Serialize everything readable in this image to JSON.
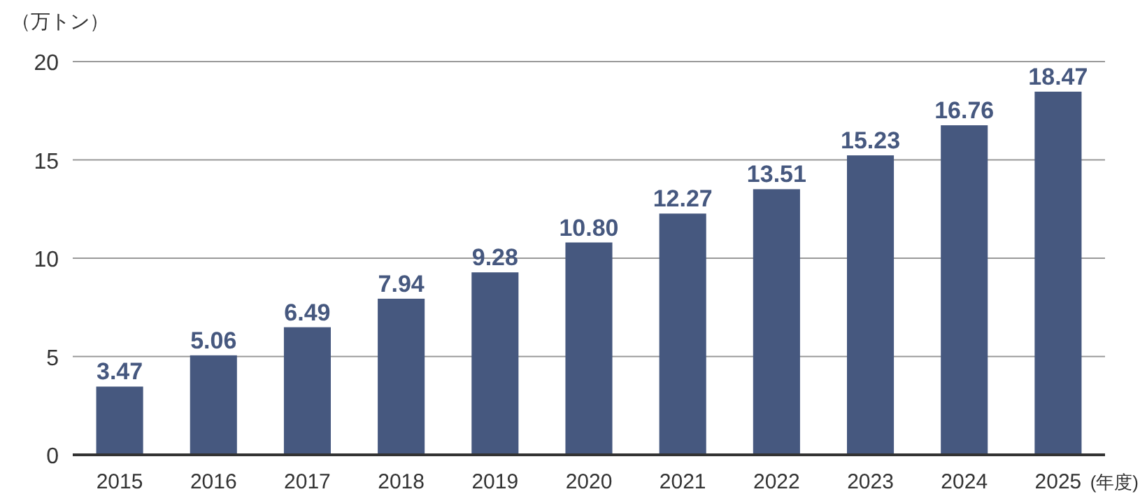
{
  "chart_data": {
    "type": "bar",
    "ylabel": "（万トン）",
    "xlabel": "(年度)",
    "categories": [
      "2015",
      "2016",
      "2017",
      "2018",
      "2019",
      "2020",
      "2021",
      "2022",
      "2023",
      "2024",
      "2025"
    ],
    "series": [
      {
        "color": "#46587f",
        "values": [
          3.47,
          5.06,
          6.49,
          7.94,
          9.28,
          10.8,
          12.27,
          13.51,
          15.23,
          16.76,
          18.47
        ]
      }
    ],
    "value_labels": [
      "3.47",
      "5.06",
      "6.49",
      "7.94",
      "9.28",
      "10.80",
      "12.27",
      "13.51",
      "15.23",
      "16.76",
      "18.47"
    ],
    "ylim": [
      0,
      20
    ],
    "yticks": [
      0,
      5,
      10,
      15,
      20
    ],
    "grid": "y"
  }
}
